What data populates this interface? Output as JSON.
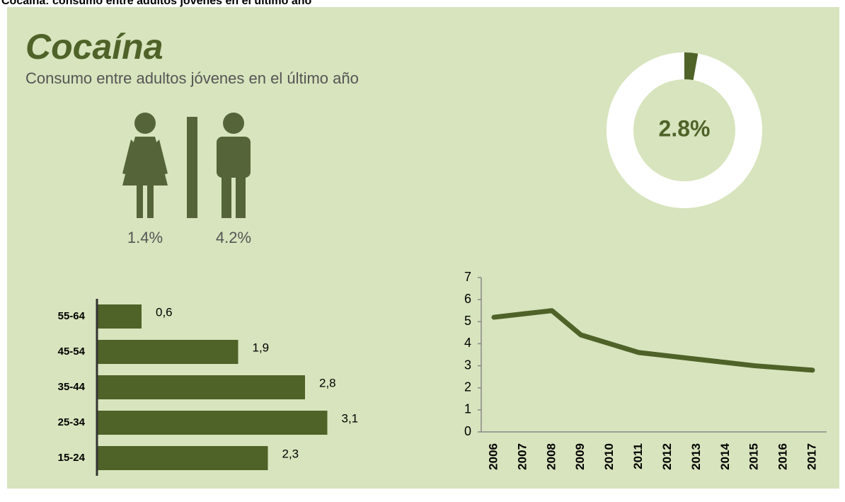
{
  "header": {
    "caption": "Cocaína: consumo entre adultos jóvenes en el último año",
    "title": "Cocaína",
    "subtitle": "Consumo entre adultos jóvenes en el último año"
  },
  "chart_data": [
    {
      "type": "pictogram",
      "values": [
        1.4,
        4.2
      ],
      "value_labels": [
        "1.4%",
        "4.2%"
      ],
      "color": "#56643a"
    },
    {
      "type": "donut",
      "values": [
        2.8
      ],
      "value_labels": [
        "2.8%"
      ],
      "color": "#4f6228",
      "ylim": [
        0,
        100
      ]
    },
    {
      "type": "bar",
      "orientation": "horizontal",
      "categories": [
        "55-64",
        "45-54",
        "35-44",
        "25-34",
        "15-24"
      ],
      "values": [
        0.6,
        1.9,
        2.8,
        3.1,
        2.3
      ],
      "value_labels": [
        "0,6",
        "1,9",
        "2,8",
        "3,1",
        "2,3"
      ],
      "color": "#4f6228",
      "xlim": [
        0,
        4
      ]
    },
    {
      "type": "line",
      "x": [
        "2006",
        "2007",
        "2008",
        "2009",
        "2010",
        "2011",
        "2012",
        "2013",
        "2014",
        "2015",
        "2016",
        "2017"
      ],
      "series": [
        {
          "color": "#4f6228",
          "values": [
            5.2,
            5.35,
            5.5,
            4.4,
            4.0,
            3.6,
            3.45,
            3.3,
            3.15,
            3.0,
            2.9,
            2.8
          ]
        }
      ],
      "ylim": [
        0,
        7
      ],
      "yticks": [
        0,
        1,
        2,
        3,
        4,
        5,
        6,
        7
      ]
    }
  ]
}
